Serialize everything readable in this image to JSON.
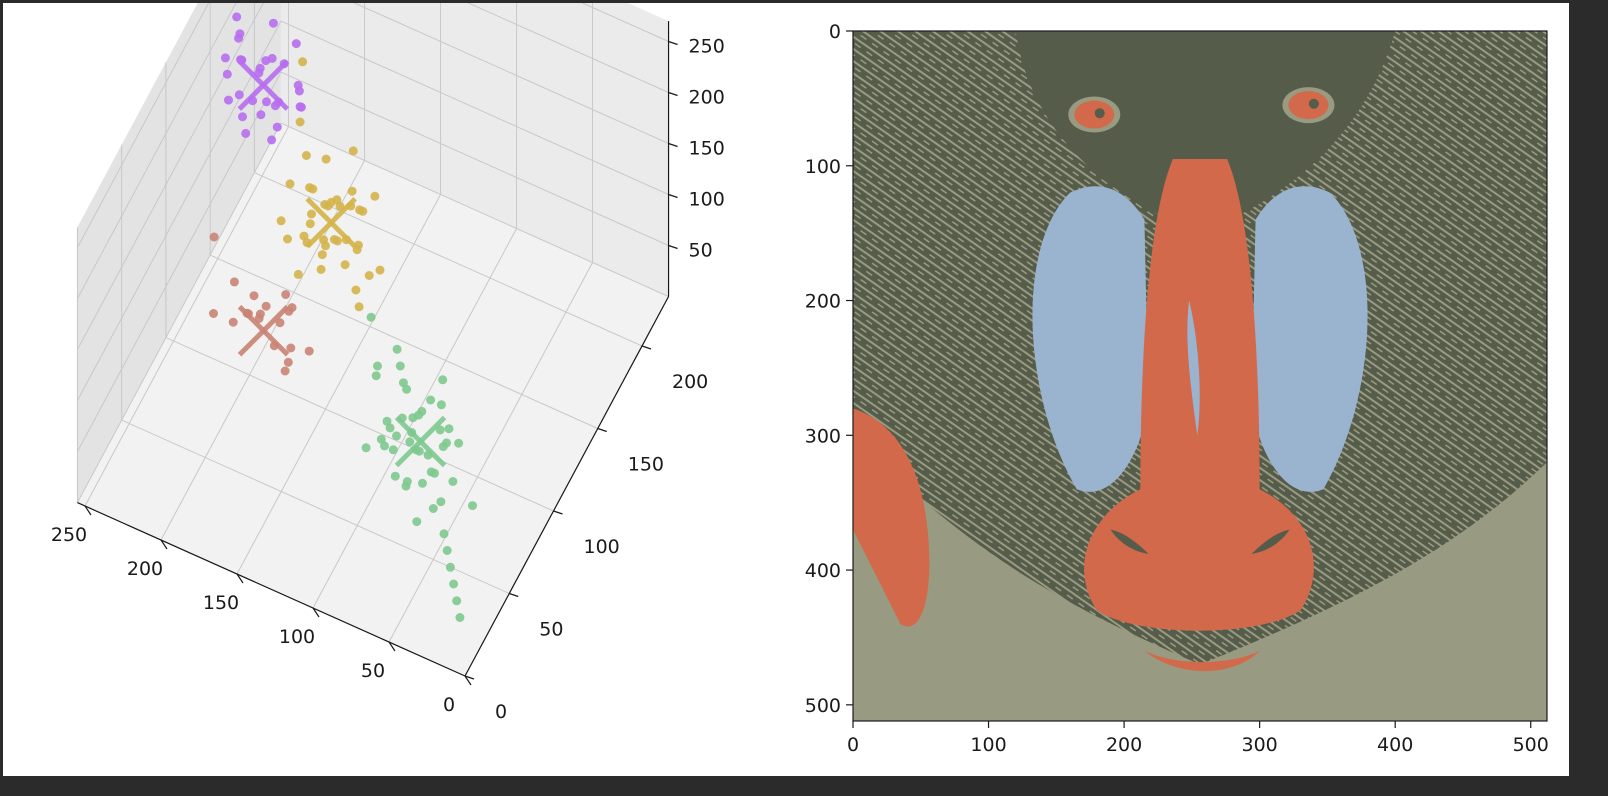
{
  "chart_data": [
    {
      "type": "scatter",
      "projection": "3d",
      "title": "",
      "xlabel": "",
      "ylabel": "",
      "zlabel": "",
      "xlim": [
        0,
        255
      ],
      "ylim": [
        0,
        230
      ],
      "zlim": [
        0,
        270
      ],
      "x_ticks": [
        "0",
        "50",
        "100",
        "150",
        "200",
        "250"
      ],
      "y_ticks": [
        "0",
        "50",
        "100",
        "150",
        "200"
      ],
      "z_ticks": [
        "50",
        "100",
        "150",
        "200",
        "250"
      ],
      "grid": true,
      "legend": "none",
      "series": [
        {
          "color": "#7ec98f",
          "centroid": {
            "x": 70,
            "y": 70,
            "z": 70,
            "marker": "x"
          },
          "points": [
            [
              60,
              55,
              60
            ],
            [
              75,
              80,
              80
            ],
            [
              70,
              65,
              70
            ],
            [
              85,
              75,
              75
            ],
            [
              55,
              60,
              65
            ],
            [
              90,
              85,
              90
            ],
            [
              65,
              70,
              60
            ],
            [
              80,
              60,
              85
            ],
            [
              50,
              50,
              50
            ],
            [
              95,
              90,
              95
            ],
            [
              60,
              75,
              80
            ],
            [
              70,
              55,
              55
            ],
            [
              75,
              70,
              90
            ],
            [
              85,
              65,
              60
            ],
            [
              65,
              85,
              85
            ],
            [
              90,
              70,
              70
            ],
            [
              40,
              45,
              40
            ],
            [
              100,
              95,
              100
            ],
            [
              55,
              70,
              75
            ],
            [
              80,
              85,
              65
            ],
            [
              70,
              60,
              95
            ],
            [
              60,
              65,
              55
            ],
            [
              75,
              90,
              75
            ],
            [
              85,
              55,
              80
            ],
            [
              45,
              50,
              60
            ],
            [
              30,
              35,
              30
            ],
            [
              20,
              25,
              20
            ],
            [
              35,
              40,
              35
            ],
            [
              25,
              30,
              25
            ],
            [
              15,
              20,
              15
            ],
            [
              100,
              60,
              60
            ],
            [
              110,
              90,
              85
            ],
            [
              50,
              65,
              90
            ],
            [
              95,
              75,
              65
            ],
            [
              65,
              45,
              70
            ],
            [
              75,
              50,
              65
            ],
            [
              85,
              80,
              95
            ],
            [
              60,
              85,
              65
            ],
            [
              70,
              95,
              90
            ],
            [
              90,
              60,
              75
            ],
            [
              40,
              55,
              75
            ],
            [
              55,
              40,
              50
            ],
            [
              80,
              75,
              55
            ],
            [
              105,
              80,
              95
            ],
            [
              120,
              100,
              110
            ],
            [
              30,
              60,
              50
            ],
            [
              45,
              70,
              85
            ],
            [
              65,
              60,
              80
            ]
          ]
        },
        {
          "color": "#d4b44a",
          "centroid": {
            "x": 155,
            "y": 115,
            "z": 155,
            "marker": "x"
          },
          "points": [
            [
              150,
              110,
              150
            ],
            [
              160,
              120,
              160
            ],
            [
              145,
              115,
              145
            ],
            [
              165,
              110,
              165
            ],
            [
              155,
              125,
              155
            ],
            [
              140,
              105,
              140
            ],
            [
              170,
              120,
              170
            ],
            [
              150,
              100,
              160
            ],
            [
              160,
              130,
              150
            ],
            [
              145,
              120,
              170
            ],
            [
              165,
              105,
              145
            ],
            [
              135,
              110,
              150
            ],
            [
              175,
              125,
              160
            ],
            [
              155,
              115,
              175
            ],
            [
              140,
              120,
              135
            ],
            [
              170,
              110,
              140
            ],
            [
              150,
              130,
              165
            ],
            [
              160,
              100,
              175
            ],
            [
              130,
              100,
              130
            ],
            [
              180,
              130,
              180
            ],
            [
              145,
              105,
              160
            ],
            [
              165,
              125,
              150
            ],
            [
              155,
              105,
              140
            ],
            [
              140,
              125,
              160
            ],
            [
              185,
              120,
              165
            ],
            [
              125,
              95,
              125
            ],
            [
              190,
              140,
              190
            ],
            [
              200,
              160,
              210
            ],
            [
              120,
              110,
              140
            ],
            [
              175,
              100,
              150
            ],
            [
              135,
              130,
              170
            ],
            [
              160,
              115,
              135
            ],
            [
              150,
              95,
              145
            ],
            [
              145,
              130,
              150
            ],
            [
              170,
              135,
              175
            ],
            [
              130,
              115,
              120
            ],
            [
              185,
              110,
              145
            ],
            [
              155,
              140,
              185
            ],
            [
              165,
              95,
              130
            ]
          ]
        },
        {
          "color": "#c98474",
          "centroid": {
            "x": 150,
            "y": 30,
            "z": 190,
            "marker": "x"
          },
          "points": [
            [
              140,
              25,
              190
            ],
            [
              155,
              35,
              195
            ],
            [
              145,
              40,
              185
            ],
            [
              160,
              30,
              200
            ],
            [
              130,
              20,
              180
            ],
            [
              165,
              45,
              190
            ],
            [
              150,
              25,
              210
            ],
            [
              135,
              35,
              175
            ],
            [
              170,
              30,
              185
            ],
            [
              125,
              15,
              200
            ],
            [
              175,
              40,
              205
            ],
            [
              145,
              50,
              180
            ],
            [
              155,
              20,
              220
            ],
            [
              140,
              45,
              195
            ],
            [
              160,
              50,
              175
            ],
            [
              120,
              30,
              190
            ],
            [
              180,
              25,
              195
            ],
            [
              150,
              55,
              185
            ],
            [
              200,
              60,
              200
            ]
          ]
        },
        {
          "color": "#b76ef0",
          "centroid": {
            "x": 220,
            "y": 150,
            "z": 190,
            "marker": "x"
          },
          "points": [
            [
              215,
              145,
              185
            ],
            [
              225,
              155,
              195
            ],
            [
              210,
              150,
              180
            ],
            [
              230,
              140,
              190
            ],
            [
              220,
              160,
              200
            ],
            [
              205,
              140,
              175
            ],
            [
              235,
              150,
              205
            ],
            [
              215,
              165,
              190
            ],
            [
              225,
              135,
              180
            ],
            [
              200,
              155,
              195
            ],
            [
              240,
              160,
              185
            ],
            [
              210,
              130,
              200
            ],
            [
              230,
              170,
              175
            ],
            [
              220,
              145,
              210
            ],
            [
              195,
              150,
              185
            ],
            [
              245,
              165,
              195
            ],
            [
              205,
              165,
              170
            ],
            [
              235,
              135,
              215
            ],
            [
              250,
              175,
              180
            ],
            [
              190,
              140,
              205
            ],
            [
              215,
              155,
              165
            ],
            [
              240,
              145,
              170
            ],
            [
              225,
              170,
              215
            ],
            [
              200,
              125,
              190
            ],
            [
              255,
              180,
              185
            ],
            [
              230,
              155,
              160
            ],
            [
              210,
              170,
              205
            ],
            [
              220,
              130,
              175
            ],
            [
              245,
              150,
              200
            ]
          ]
        }
      ]
    },
    {
      "type": "heatmap",
      "image": "quantized-mandrill-4-colors",
      "title": "",
      "xlabel": "",
      "ylabel": "",
      "xlim": [
        0,
        512
      ],
      "ylim": [
        512,
        0
      ],
      "x_ticks": [
        "0",
        "100",
        "200",
        "300",
        "400",
        "500"
      ],
      "y_ticks": [
        "0",
        "100",
        "200",
        "300",
        "400",
        "500"
      ],
      "palette": [
        "#555c4a",
        "#999a82",
        "#9ab4d0",
        "#d2694a"
      ]
    }
  ]
}
